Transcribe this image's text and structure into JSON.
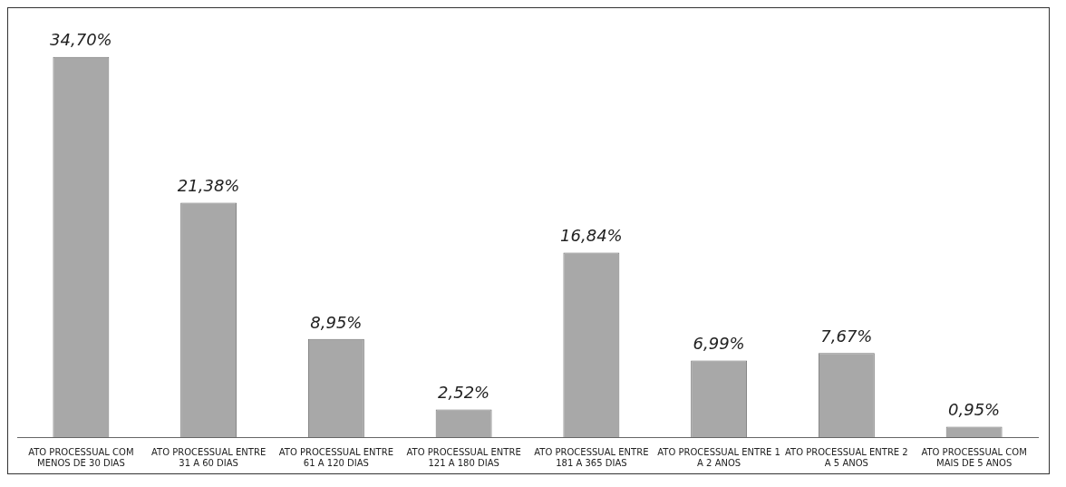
{
  "chart_data": {
    "type": "bar",
    "categories": [
      "ATO PROCESSUAL COM MENOS DE 30 DIAS",
      "ATO PROCESSUAL ENTRE 31 A 60 DIAS",
      "ATO PROCESSUAL ENTRE 61 A 120 DIAS",
      "ATO PROCESSUAL ENTRE 121 A 180 DIAS",
      "ATO PROCESSUAL ENTRE 181 A 365 DIAS",
      "ATO PROCESSUAL ENTRE 1 A 2 ANOS",
      "ATO PROCESSUAL ENTRE 2 A 5 ANOS",
      "ATO PROCESSUAL COM MAIS DE 5 ANOS"
    ],
    "values": [
      34.7,
      21.38,
      8.95,
      2.52,
      16.84,
      6.99,
      7.67,
      0.95
    ],
    "value_labels": [
      "34,70%",
      "21,38%",
      "8,95%",
      "2,52%",
      "16,84%",
      "6,99%",
      "7,67%",
      "0,95%"
    ],
    "color": "#a8a8a8"
  }
}
